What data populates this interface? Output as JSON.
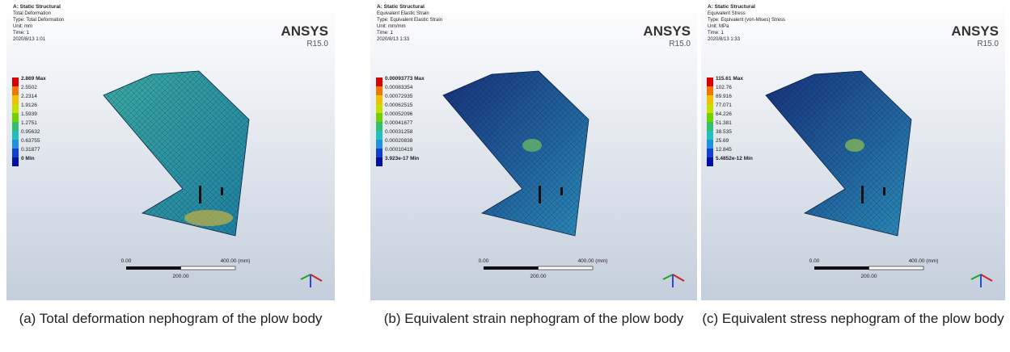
{
  "panels": [
    {
      "header": [
        "A: Static Structural",
        "Total Deformation",
        "Type: Total Deformation",
        "Unit: mm",
        "Time: 1",
        "2020/8/13 1:01"
      ],
      "legend": [
        "2.869 Max",
        "2.5502",
        "2.2314",
        "1.9126",
        "1.5939",
        "1.2751",
        "0.95632",
        "0.63755",
        "0.31877",
        "0 Min"
      ],
      "logo": "ANSYS",
      "version": "R15.0",
      "scale": {
        "start": "0.00",
        "end": "400.00 (mm)",
        "mid": "200.00"
      },
      "caption": "(a) Total deformation nephogram of the plow body"
    },
    {
      "header": [
        "A: Static Structural",
        "Equivalent Elastic Strain",
        "Type: Equivalent Elastic Strain",
        "Unit: mm/mm",
        "Time: 1",
        "2020/8/13 1:33"
      ],
      "legend": [
        "0.00093773 Max",
        "0.00083354",
        "0.00072935",
        "0.00062515",
        "0.00052096",
        "0.00041677",
        "0.00031258",
        "0.00020838",
        "0.00010419",
        "3.923e-17 Min"
      ],
      "logo": "ANSYS",
      "version": "R15.0",
      "scale": {
        "start": "0.00",
        "end": "400.00 (mm)",
        "mid": "200.00"
      },
      "caption": "(b) Equivalent strain nephogram of the plow body"
    },
    {
      "header": [
        "A: Static Structural",
        "Equivalent Stress",
        "Type: Equivalent (von-Mises) Stress",
        "Unit: MPa",
        "Time: 1",
        "2020/8/13 1:33"
      ],
      "legend": [
        "115.61 Max",
        "102.76",
        "89.916",
        "77.071",
        "64.226",
        "51.381",
        "38.535",
        "25.69",
        "12.845",
        "5.4852e-12 Min"
      ],
      "logo": "ANSYS",
      "version": "R15.0",
      "scale": {
        "start": "0.00",
        "end": "400.00 (mm)",
        "mid": "200.00"
      },
      "caption": "(c) Equivalent stress nephogram of the plow body"
    }
  ]
}
